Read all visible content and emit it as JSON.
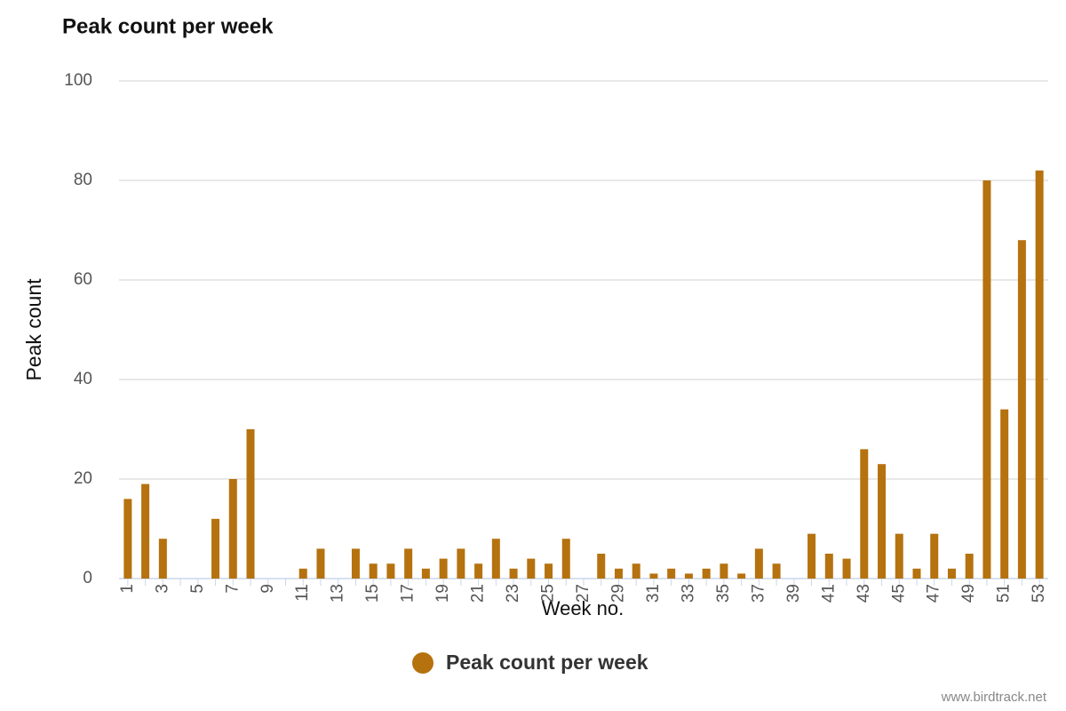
{
  "chart_data": {
    "type": "bar",
    "title": "Peak count per week",
    "x_label": "Week no.",
    "y_label": "Peak count",
    "source": "www.birdtrack.net",
    "categories": [
      "1",
      null,
      "3",
      null,
      "5",
      null,
      "7",
      null,
      "9",
      null,
      "11",
      null,
      "13",
      null,
      "15",
      null,
      "17",
      null,
      "19",
      null,
      "21",
      null,
      "23",
      null,
      "25",
      null,
      "27",
      null,
      "29",
      null,
      "31",
      null,
      "33",
      null,
      "35",
      null,
      "37",
      null,
      "39",
      null,
      "41",
      null,
      "43",
      null,
      "45",
      null,
      "47",
      null,
      "49",
      null,
      "51",
      null,
      "53"
    ],
    "series": [
      {
        "name": "Peak count per week",
        "color": "#b5720f",
        "values": [
          16,
          19,
          8,
          0,
          0,
          12,
          20,
          30,
          0,
          0,
          2,
          6,
          0,
          6,
          3,
          3,
          6,
          2,
          4,
          6,
          3,
          8,
          2,
          4,
          3,
          8,
          0,
          5,
          2,
          3,
          1,
          2,
          1,
          2,
          3,
          1,
          6,
          3,
          0,
          9,
          5,
          4,
          26,
          23,
          9,
          2,
          9,
          2,
          5,
          80,
          34,
          68,
          82
        ]
      }
    ],
    "ylim": [
      0,
      100
    ],
    "yticks": [
      0,
      20,
      40,
      60,
      80,
      100
    ],
    "grid": true,
    "legend": "bottom"
  }
}
